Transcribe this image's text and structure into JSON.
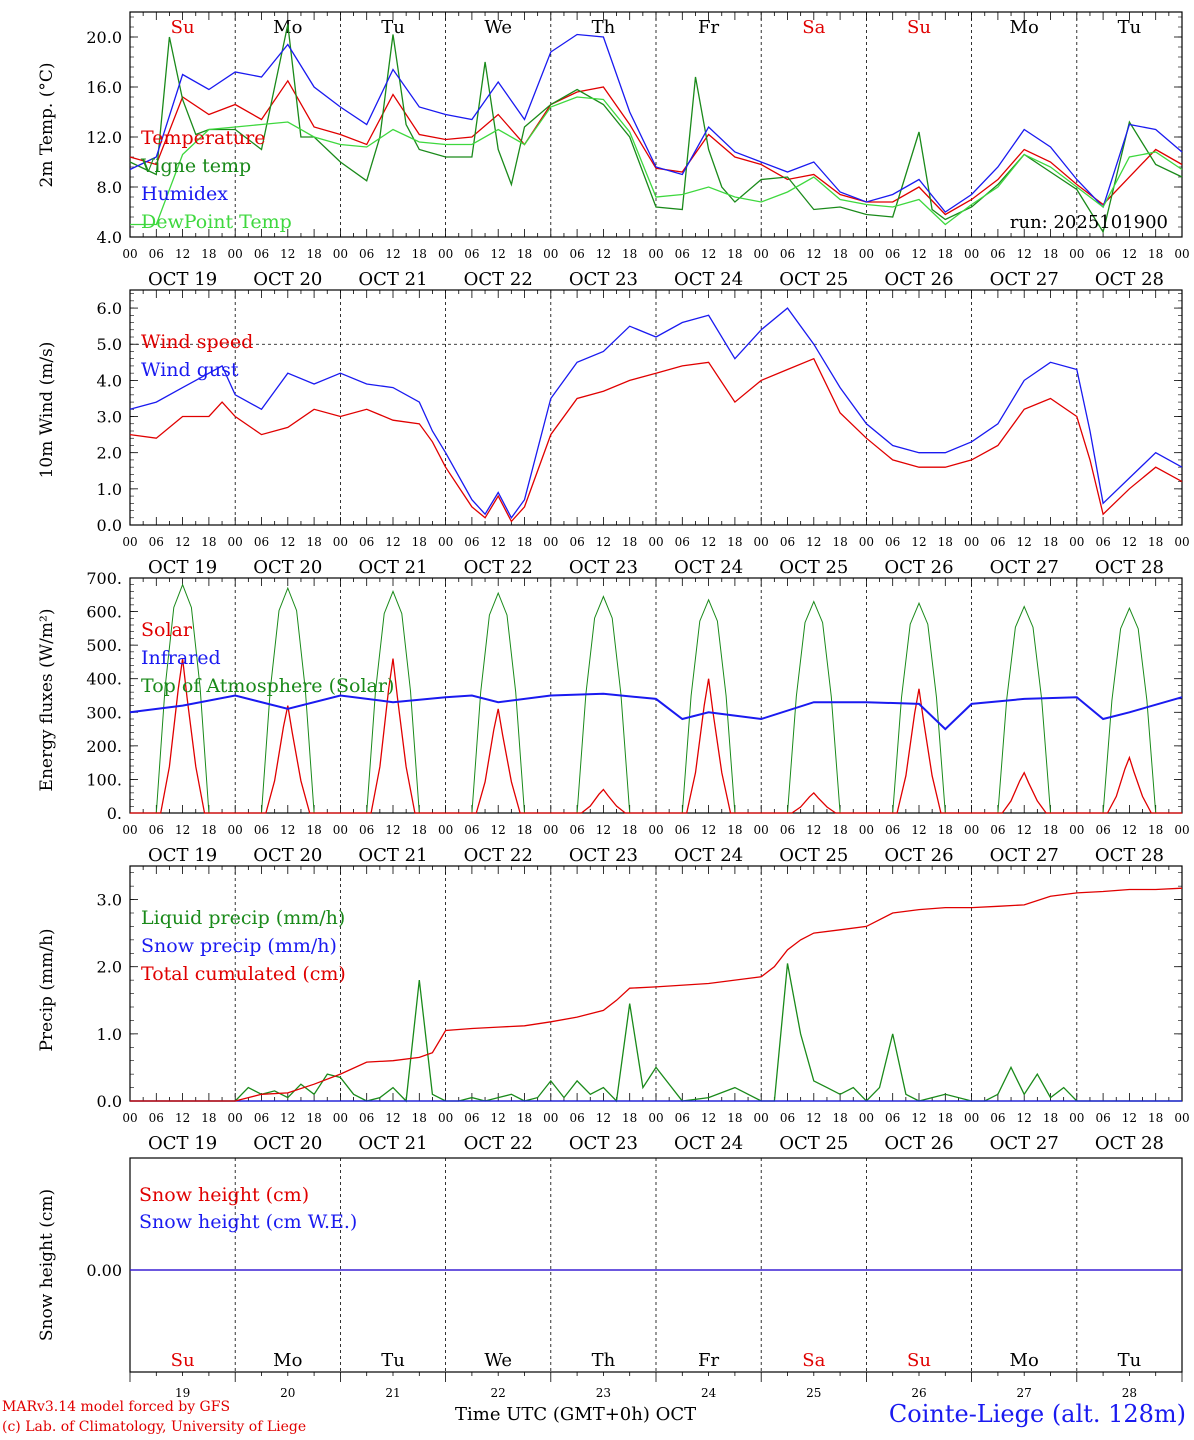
{
  "footer": {
    "credit_line1": "MARv3.14 model forced by GFS",
    "credit_line2": "(c) Lab. of Climatology, University of Liege",
    "station": "Cointe-Liege (alt. 128m)",
    "xlabel": "Time UTC (GMT+0h) OCT",
    "run": "run: 2025101900"
  },
  "chart_data": [
    {
      "type": "line",
      "ylabel": "2m Temp. (°C)",
      "ylim": [
        4,
        22
      ],
      "yticks": [
        "4.0",
        "8.0",
        "12.0",
        "16.0",
        "20.0"
      ],
      "days": [
        "Su",
        "Mo",
        "Tu",
        "We",
        "Th",
        "Fr",
        "Sa",
        "Su",
        "Mo",
        "Tu"
      ],
      "date_labels": [
        "OCT 19",
        "OCT 20",
        "OCT 21",
        "OCT 22",
        "OCT 23",
        "OCT 24",
        "OCT 25",
        "OCT 26",
        "OCT 27",
        "OCT 28"
      ],
      "hour_ticks": [
        "00",
        "06",
        "12",
        "18"
      ],
      "x_unit": "hours since 2025-10-19 00 UTC",
      "series": [
        {
          "name": "Temperature",
          "color": "#e00000",
          "x": [
            0,
            6,
            12,
            18,
            24,
            30,
            36,
            42,
            48,
            54,
            60,
            66,
            72,
            78,
            84,
            90,
            96,
            102,
            108,
            114,
            120,
            126,
            132,
            138,
            144,
            150,
            156,
            162,
            168,
            174,
            180,
            186,
            192,
            198,
            204,
            210,
            216,
            222,
            234,
            240
          ],
          "y": [
            10.4,
            9.8,
            15.2,
            13.8,
            14.6,
            13.4,
            16.5,
            12.8,
            12.2,
            11.4,
            15.4,
            12.2,
            11.8,
            12.0,
            13.8,
            11.4,
            14.6,
            15.6,
            16.0,
            13.0,
            9.5,
            9.2,
            12.2,
            10.4,
            9.8,
            8.6,
            9.0,
            7.4,
            6.8,
            6.8,
            8.0,
            5.8,
            7.0,
            8.6,
            11.0,
            10.0,
            8.2,
            6.6,
            11.0,
            9.8
          ]
        },
        {
          "name": "Vigne temp",
          "color": "#1a8a1a",
          "x": [
            0,
            6,
            9,
            12,
            15,
            18,
            24,
            30,
            36,
            39,
            42,
            48,
            54,
            57,
            60,
            63,
            66,
            72,
            78,
            81,
            84,
            87,
            90,
            96,
            102,
            108,
            114,
            120,
            126,
            129,
            132,
            135,
            138,
            144,
            150,
            156,
            162,
            168,
            174,
            180,
            183,
            186,
            192,
            198,
            204,
            210,
            216,
            222,
            228,
            234,
            240
          ],
          "y": [
            10.0,
            9.0,
            20.0,
            15.0,
            12.2,
            12.6,
            12.6,
            11.0,
            21.0,
            12.0,
            12.0,
            10.0,
            8.5,
            12.0,
            20.2,
            13.0,
            11.0,
            10.4,
            10.4,
            18.0,
            11.0,
            8.2,
            12.8,
            14.6,
            15.8,
            14.6,
            12.0,
            6.4,
            6.2,
            16.8,
            11.0,
            8.0,
            6.8,
            8.6,
            8.8,
            6.2,
            6.4,
            5.8,
            5.6,
            12.4,
            6.2,
            5.4,
            6.4,
            8.2,
            10.6,
            9.2,
            7.8,
            4.4,
            13.2,
            9.8,
            8.8
          ]
        },
        {
          "name": "Humidex",
          "color": "#1a1af0",
          "x": [
            0,
            6,
            12,
            18,
            24,
            30,
            36,
            42,
            48,
            54,
            60,
            66,
            72,
            78,
            84,
            90,
            96,
            102,
            108,
            114,
            120,
            126,
            132,
            138,
            144,
            150,
            156,
            162,
            168,
            174,
            180,
            186,
            192,
            198,
            204,
            210,
            216,
            222,
            228,
            234,
            240
          ],
          "y": [
            9.4,
            10.4,
            17.0,
            15.8,
            17.2,
            16.8,
            19.4,
            16.0,
            14.4,
            13.0,
            17.4,
            14.4,
            13.8,
            13.4,
            16.4,
            13.4,
            18.8,
            20.2,
            20.0,
            14.0,
            9.6,
            9.0,
            12.8,
            10.8,
            10.0,
            9.2,
            10.0,
            7.6,
            6.8,
            7.4,
            8.6,
            6.0,
            7.4,
            9.6,
            12.6,
            11.2,
            8.6,
            6.4,
            13.0,
            12.6,
            10.8
          ]
        },
        {
          "name": "DewPoint Temp",
          "color": "#3ed83e",
          "x": [
            0,
            6,
            12,
            18,
            24,
            30,
            36,
            42,
            48,
            54,
            60,
            66,
            72,
            78,
            84,
            90,
            96,
            102,
            108,
            114,
            120,
            126,
            132,
            138,
            144,
            150,
            156,
            162,
            168,
            174,
            180,
            186,
            192,
            198,
            204,
            210,
            216,
            222,
            228,
            234,
            240
          ],
          "y": [
            5.0,
            5.0,
            10.6,
            12.6,
            12.8,
            13.0,
            13.2,
            12.0,
            11.4,
            11.2,
            12.6,
            11.6,
            11.4,
            11.4,
            12.6,
            11.4,
            14.4,
            15.2,
            15.0,
            12.4,
            7.2,
            7.4,
            8.0,
            7.2,
            6.8,
            7.6,
            8.8,
            7.0,
            6.6,
            6.4,
            7.0,
            5.0,
            6.6,
            8.0,
            10.6,
            9.6,
            8.0,
            6.4,
            10.4,
            10.8,
            9.4
          ]
        }
      ]
    },
    {
      "type": "line",
      "ylabel": "10m Wind (m/s)",
      "ylim": [
        0,
        6.5
      ],
      "yticks": [
        "0.0",
        "1.0",
        "2.0",
        "3.0",
        "4.0",
        "5.0",
        "6.0"
      ],
      "reference_line": 5.0,
      "date_labels": [
        "OCT 19",
        "OCT 20",
        "OCT 21",
        "OCT 22",
        "OCT 23",
        "OCT 24",
        "OCT 25",
        "OCT 26",
        "OCT 27",
        "OCT 28"
      ],
      "hour_ticks": [
        "00",
        "06",
        "12",
        "18"
      ],
      "series": [
        {
          "name": "Wind speed",
          "color": "#e00000",
          "x": [
            0,
            6,
            12,
            18,
            21,
            24,
            30,
            36,
            42,
            48,
            54,
            60,
            66,
            69,
            72,
            78,
            81,
            84,
            87,
            90,
            96,
            102,
            108,
            114,
            120,
            126,
            132,
            138,
            144,
            150,
            156,
            162,
            168,
            174,
            180,
            186,
            192,
            198,
            204,
            210,
            216,
            219,
            222,
            228,
            234,
            240
          ],
          "y": [
            2.5,
            2.4,
            3.0,
            3.0,
            3.4,
            3.0,
            2.5,
            2.7,
            3.2,
            3.0,
            3.2,
            2.9,
            2.8,
            2.3,
            1.6,
            0.5,
            0.2,
            0.8,
            0.1,
            0.5,
            2.5,
            3.5,
            3.7,
            4.0,
            4.2,
            4.4,
            4.5,
            3.4,
            4.0,
            4.3,
            4.6,
            3.1,
            2.4,
            1.8,
            1.6,
            1.6,
            1.8,
            2.2,
            3.2,
            3.5,
            3.0,
            1.8,
            0.3,
            1.0,
            1.6,
            1.2
          ]
        },
        {
          "name": "Wind gust",
          "color": "#1a1af0",
          "x": [
            0,
            6,
            12,
            18,
            21,
            24,
            30,
            36,
            42,
            48,
            54,
            60,
            66,
            69,
            72,
            78,
            81,
            84,
            87,
            90,
            96,
            102,
            108,
            114,
            120,
            126,
            132,
            138,
            144,
            150,
            156,
            162,
            168,
            174,
            180,
            186,
            192,
            198,
            204,
            210,
            216,
            219,
            222,
            228,
            234,
            240
          ],
          "y": [
            3.2,
            3.4,
            3.8,
            4.2,
            4.4,
            3.6,
            3.2,
            4.2,
            3.9,
            4.2,
            3.9,
            3.8,
            3.4,
            2.6,
            2.0,
            0.7,
            0.3,
            0.9,
            0.2,
            0.7,
            3.5,
            4.5,
            4.8,
            5.5,
            5.2,
            5.6,
            5.8,
            4.6,
            5.4,
            6.0,
            5.0,
            3.8,
            2.8,
            2.2,
            2.0,
            2.0,
            2.3,
            2.8,
            4.0,
            4.5,
            4.3,
            2.6,
            0.6,
            1.3,
            2.0,
            1.6
          ]
        }
      ]
    },
    {
      "type": "line",
      "ylabel": "Energy fluxes (W/m²)",
      "ylim": [
        0,
        700
      ],
      "yticks": [
        "0.",
        "100.",
        "200.",
        "300.",
        "400.",
        "500.",
        "600.",
        "700."
      ],
      "date_labels": [
        "OCT 19",
        "OCT 20",
        "OCT 21",
        "OCT 22",
        "OCT 23",
        "OCT 24",
        "OCT 25",
        "OCT 26",
        "OCT 27",
        "OCT 28"
      ],
      "hour_ticks": [
        "00",
        "06",
        "12",
        "18"
      ],
      "series": [
        {
          "name": "Solar",
          "color": "#e00000",
          "peaks": [
            460,
            320,
            460,
            310,
            70,
            400,
            60,
            370,
            120,
            165
          ]
        },
        {
          "name": "Infrared",
          "color": "#1a1af0",
          "x": [
            0,
            12,
            24,
            36,
            48,
            60,
            72,
            78,
            84,
            96,
            108,
            120,
            126,
            132,
            138,
            144,
            156,
            168,
            180,
            186,
            192,
            204,
            216,
            222,
            228,
            240
          ],
          "y": [
            300,
            320,
            350,
            310,
            350,
            330,
            345,
            350,
            330,
            350,
            355,
            340,
            280,
            300,
            290,
            280,
            330,
            330,
            325,
            250,
            325,
            340,
            345,
            280,
            300,
            345
          ]
        },
        {
          "name": "Top of Atmosphere (Solar)",
          "color": "#1a8a1a",
          "peaks": [
            680,
            670,
            660,
            655,
            645,
            635,
            630,
            625,
            615,
            610
          ]
        }
      ]
    },
    {
      "type": "line",
      "ylabel": "Precip (mm/h)",
      "ylim": [
        0,
        3.5
      ],
      "yticks": [
        "0.0",
        "1.0",
        "2.0",
        "3.0"
      ],
      "date_labels": [
        "OCT 19",
        "OCT 20",
        "OCT 21",
        "OCT 22",
        "OCT 23",
        "OCT 24",
        "OCT 25",
        "OCT 26",
        "OCT 27",
        "OCT 28"
      ],
      "hour_ticks": [
        "00",
        "06",
        "12",
        "18"
      ],
      "series": [
        {
          "name": "Liquid precip (mm/h)",
          "color": "#1a8a1a",
          "x": [
            0,
            24,
            27,
            30,
            33,
            36,
            39,
            42,
            45,
            48,
            51,
            54,
            57,
            60,
            63,
            66,
            69,
            72,
            75,
            78,
            81,
            84,
            87,
            90,
            93,
            96,
            99,
            102,
            105,
            108,
            111,
            114,
            117,
            120,
            126,
            132,
            138,
            144,
            147,
            150,
            153,
            156,
            159,
            162,
            165,
            168,
            171,
            174,
            177,
            180,
            186,
            192,
            195,
            198,
            201,
            204,
            207,
            210,
            213,
            216,
            222,
            228,
            234,
            240
          ],
          "y": [
            0,
            0,
            0.2,
            0.1,
            0.15,
            0.05,
            0.25,
            0.1,
            0.4,
            0.35,
            0.1,
            0,
            0.05,
            0.2,
            0,
            1.8,
            0.1,
            0,
            0,
            0.05,
            0,
            0.05,
            0.1,
            0,
            0.05,
            0.3,
            0.05,
            0.3,
            0.1,
            0.2,
            0,
            1.45,
            0.2,
            0.5,
            0,
            0.05,
            0.2,
            0,
            0,
            2.05,
            1.0,
            0.3,
            0.2,
            0.1,
            0.2,
            0,
            0.2,
            1.0,
            0.1,
            0,
            0.1,
            0,
            0,
            0.1,
            0.5,
            0.1,
            0.4,
            0.05,
            0.2,
            0,
            0,
            0,
            0,
            0
          ]
        },
        {
          "name": "Snow precip (mm/h)",
          "color": "#1a1af0",
          "x": [
            0,
            240
          ],
          "y": [
            0,
            0
          ]
        },
        {
          "name": "Total cumulated (cm)",
          "color": "#e00000",
          "x": [
            0,
            24,
            30,
            36,
            42,
            48,
            54,
            60,
            66,
            69,
            72,
            78,
            84,
            90,
            96,
            102,
            108,
            111,
            114,
            120,
            132,
            138,
            144,
            147,
            150,
            153,
            156,
            162,
            168,
            174,
            180,
            186,
            192,
            198,
            204,
            210,
            216,
            222,
            228,
            234,
            240
          ],
          "y": [
            0,
            0,
            0.1,
            0.12,
            0.25,
            0.4,
            0.58,
            0.6,
            0.65,
            0.72,
            1.05,
            1.08,
            1.1,
            1.12,
            1.18,
            1.25,
            1.35,
            1.5,
            1.68,
            1.7,
            1.75,
            1.8,
            1.85,
            2.0,
            2.25,
            2.4,
            2.5,
            2.55,
            2.6,
            2.8,
            2.85,
            2.88,
            2.88,
            2.9,
            2.92,
            3.05,
            3.1,
            3.12,
            3.15,
            3.15,
            3.17
          ]
        }
      ]
    },
    {
      "type": "line",
      "ylabel": "Snow height (cm)",
      "yticks": [
        "0.00"
      ],
      "days": [
        "Su",
        "Mo",
        "Tu",
        "We",
        "Th",
        "Fr",
        "Sa",
        "Su",
        "Mo",
        "Tu"
      ],
      "day_numbers": [
        "19",
        "20",
        "21",
        "22",
        "23",
        "24",
        "25",
        "26",
        "27",
        "28"
      ],
      "series": [
        {
          "name": "Snow height (cm)",
          "color": "#e00000",
          "x": [
            0,
            240
          ],
          "y": [
            0,
            0
          ]
        },
        {
          "name": "Snow height (cm W.E.)",
          "color": "#1a1af0",
          "x": [
            0,
            240
          ],
          "y": [
            0,
            0
          ]
        }
      ]
    }
  ]
}
